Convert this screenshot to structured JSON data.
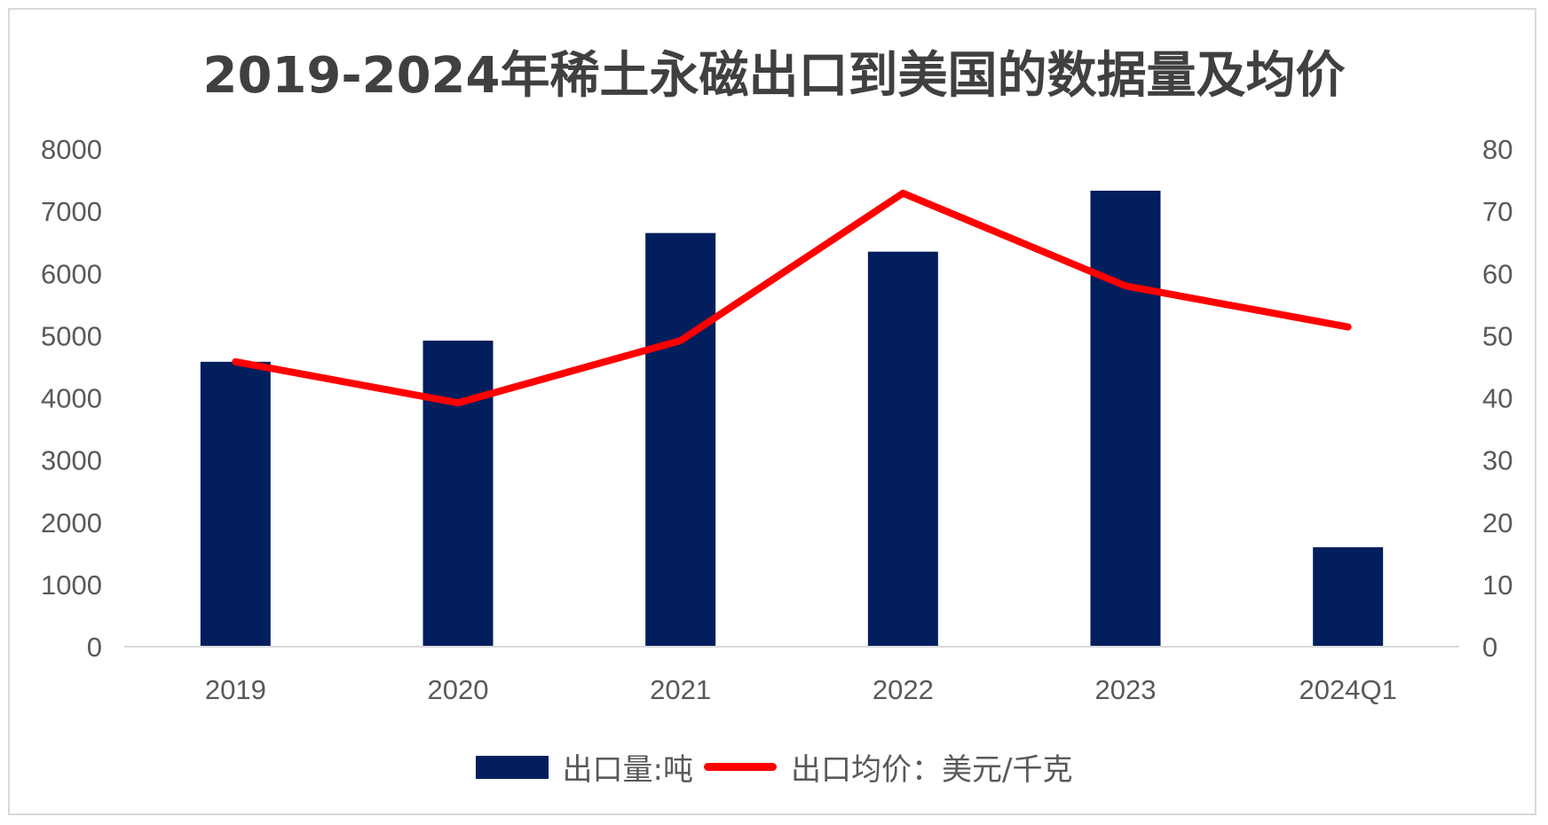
{
  "colors": {
    "bar": "#021e5c",
    "line": "#ff0000",
    "axis": "#d9d9d9",
    "text": "#595959",
    "title": "#404040"
  },
  "chart_data": {
    "type": "bar",
    "title": "2019-2024年稀土永磁出口到美国的数据量及均价",
    "categories": [
      "2019",
      "2020",
      "2021",
      "2022",
      "2023",
      "2024Q1"
    ],
    "series": [
      {
        "name": "出口量:吨",
        "type": "bar",
        "axis": "left",
        "values": [
          4580,
          4920,
          6650,
          6350,
          7330,
          1600
        ]
      },
      {
        "name": "出口均价：美元/千克",
        "type": "line",
        "axis": "right",
        "values": [
          45.8,
          39.2,
          49.2,
          72.9,
          58.0,
          51.4
        ]
      }
    ],
    "y_left": {
      "ylim": [
        0,
        8000
      ],
      "ticks": [
        "0",
        "1000",
        "2000",
        "3000",
        "4000",
        "5000",
        "6000",
        "7000",
        "8000"
      ]
    },
    "y_right": {
      "ylim": [
        0,
        80
      ],
      "ticks": [
        "0",
        "10",
        "20",
        "30",
        "40",
        "50",
        "60",
        "70",
        "80"
      ]
    },
    "grid": false,
    "legend_position": "bottom"
  }
}
